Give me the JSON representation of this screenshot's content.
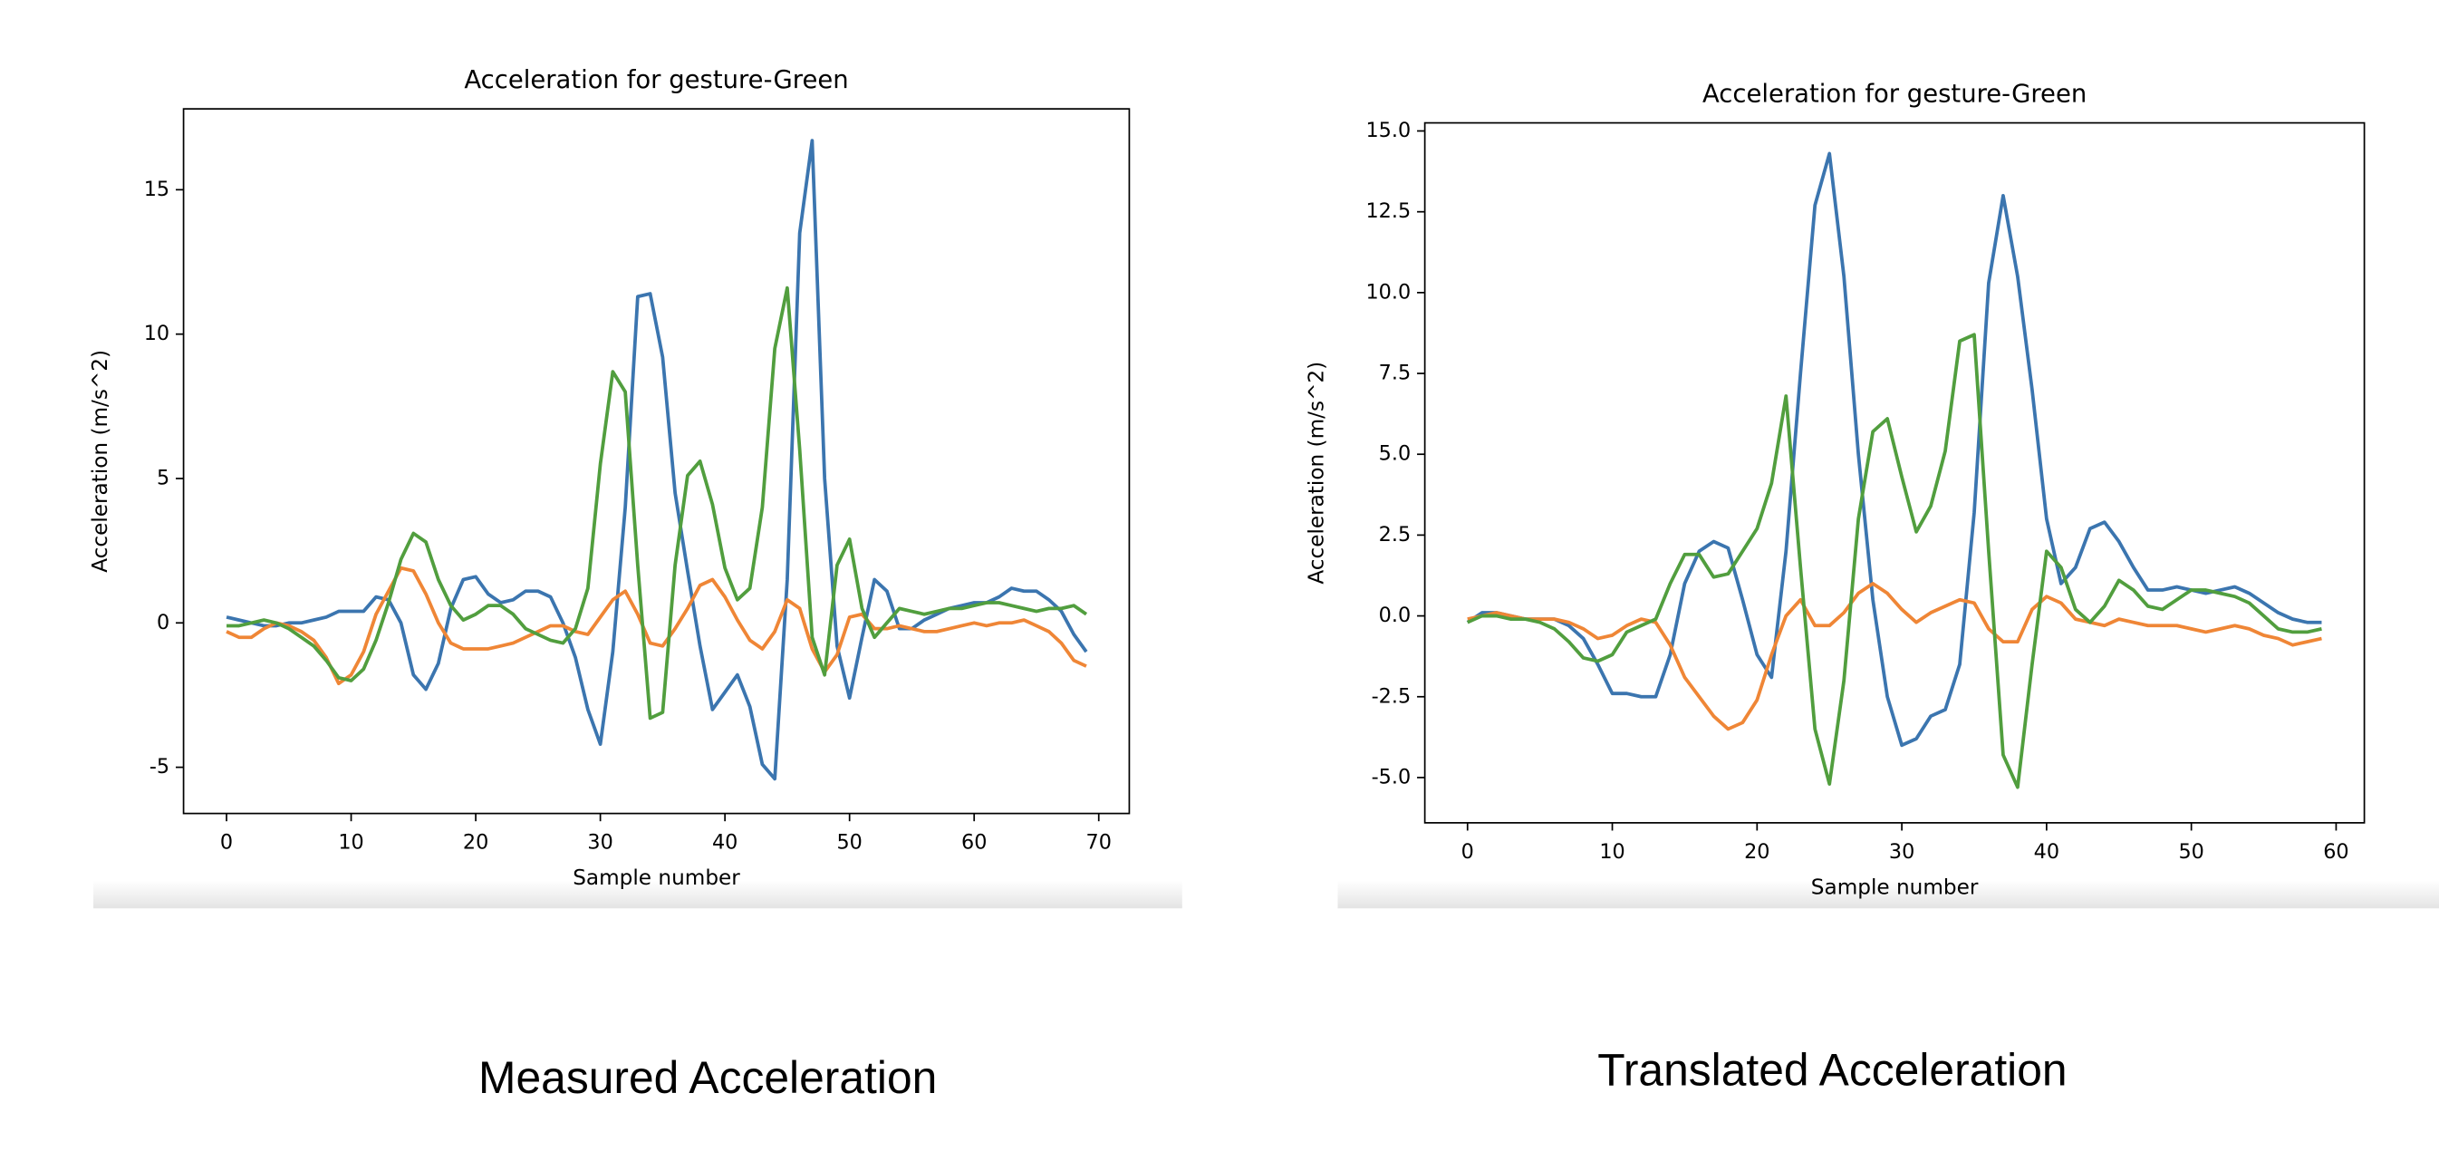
{
  "chart_data": [
    {
      "type": "line",
      "title": "Acceleration for gesture-Green",
      "x_label": "Sample number",
      "y_label": "Acceleration (m/s^2)",
      "x": [
        0,
        1,
        2,
        3,
        4,
        5,
        6,
        7,
        8,
        9,
        10,
        11,
        12,
        13,
        14,
        15,
        16,
        17,
        18,
        19,
        20,
        21,
        22,
        23,
        24,
        25,
        26,
        27,
        28,
        29,
        30,
        31,
        32,
        33,
        34,
        35,
        36,
        37,
        38,
        39,
        40,
        41,
        42,
        43,
        44,
        45,
        46,
        47,
        48,
        49,
        50,
        51,
        52,
        53,
        54,
        55,
        56,
        57,
        58,
        59,
        60,
        61,
        62,
        63,
        64,
        65,
        66,
        67,
        68,
        69
      ],
      "xlim": [
        -3.45,
        72.45
      ],
      "ylim": [
        -6.6,
        17.8
      ],
      "xticks": [
        0,
        10,
        20,
        30,
        40,
        50,
        60,
        70
      ],
      "yticks": [
        -5,
        0,
        5,
        10,
        15
      ],
      "series": [
        {
          "color": "#3b75af",
          "values": [
            0.2,
            0.1,
            0.0,
            -0.1,
            -0.1,
            0,
            0,
            0.1,
            0.2,
            0.4,
            0.4,
            0.4,
            0.9,
            0.8,
            0,
            -1.8,
            -2.3,
            -1.4,
            0.5,
            1.5,
            1.6,
            1.0,
            0.7,
            0.8,
            1.1,
            1.1,
            0.9,
            0,
            -1.2,
            -3.0,
            -4.2,
            -1.0,
            4.0,
            11.3,
            11.4,
            9.2,
            4.5,
            1.8,
            -0.8,
            -3.0,
            -2.4,
            -1.8,
            -2.9,
            -4.9,
            -5.4,
            1.5,
            13.5,
            16.7,
            5.0,
            -0.8,
            -2.6,
            -0.5,
            1.5,
            1.1,
            -0.2,
            -0.2,
            0.1,
            0.3,
            0.5,
            0.6,
            0.7,
            0.7,
            0.9,
            1.2,
            1.1,
            1.1,
            0.8,
            0.4,
            -0.4,
            -1.0
          ]
        },
        {
          "color": "#ef8636",
          "values": [
            -0.3,
            -0.5,
            -0.5,
            -0.2,
            0.0,
            -0.1,
            -0.3,
            -0.6,
            -1.2,
            -2.1,
            -1.8,
            -1.0,
            0.3,
            1.1,
            1.9,
            1.8,
            1.0,
            0.0,
            -0.7,
            -0.9,
            -0.9,
            -0.9,
            -0.8,
            -0.7,
            -0.5,
            -0.3,
            -0.1,
            -0.1,
            -0.3,
            -0.4,
            0.2,
            0.8,
            1.1,
            0.3,
            -0.7,
            -0.8,
            -0.2,
            0.5,
            1.3,
            1.5,
            0.9,
            0.1,
            -0.6,
            -0.9,
            -0.3,
            0.8,
            0.5,
            -0.9,
            -1.7,
            -1.1,
            0.2,
            0.3,
            -0.2,
            -0.2,
            -0.1,
            -0.2,
            -0.3,
            -0.3,
            -0.2,
            -0.1,
            0.0,
            -0.1,
            0.0,
            0.0,
            0.1,
            -0.1,
            -0.3,
            -0.7,
            -1.3,
            -1.5
          ]
        },
        {
          "color": "#519e3e",
          "values": [
            -0.1,
            -0.1,
            0.0,
            0.1,
            0.0,
            -0.2,
            -0.5,
            -0.8,
            -1.3,
            -1.9,
            -2.0,
            -1.6,
            -0.6,
            0.7,
            2.2,
            3.1,
            2.8,
            1.5,
            0.6,
            0.1,
            0.3,
            0.6,
            0.6,
            0.3,
            -0.2,
            -0.4,
            -0.6,
            -0.7,
            -0.2,
            1.2,
            5.5,
            8.7,
            8.0,
            2.0,
            -3.3,
            -3.1,
            2.0,
            5.1,
            5.6,
            4.1,
            1.9,
            0.8,
            1.2,
            4.0,
            9.5,
            11.6,
            6.0,
            -0.5,
            -1.8,
            2.0,
            2.9,
            0.5,
            -0.5,
            0.0,
            0.5,
            0.4,
            0.3,
            0.4,
            0.5,
            0.5,
            0.6,
            0.7,
            0.7,
            0.6,
            0.5,
            0.4,
            0.5,
            0.5,
            0.6,
            0.3
          ]
        }
      ]
    },
    {
      "type": "line",
      "title": "Acceleration for gesture-Green",
      "x_label": "Sample number",
      "y_label": "Acceleration (m/s^2)",
      "x": [
        0,
        1,
        2,
        3,
        4,
        5,
        6,
        7,
        8,
        9,
        10,
        11,
        12,
        13,
        14,
        15,
        16,
        17,
        18,
        19,
        20,
        21,
        22,
        23,
        24,
        25,
        26,
        27,
        28,
        29,
        30,
        31,
        32,
        33,
        34,
        35,
        36,
        37,
        38,
        39,
        40,
        41,
        42,
        43,
        44,
        45,
        46,
        47,
        48,
        49,
        50,
        51,
        52,
        53,
        54,
        55,
        56,
        57,
        58,
        59
      ],
      "xlim": [
        -2.95,
        61.95
      ],
      "ylim": [
        -6.4,
        15.25
      ],
      "xticks": [
        0,
        10,
        20,
        30,
        40,
        50,
        60
      ],
      "yticks": [
        {
          "value": -5,
          "label": "-5.0"
        },
        -2.5,
        {
          "value": 0,
          "label": "0.0"
        },
        2.5,
        {
          "value": 5,
          "label": "5.0"
        },
        7.5,
        {
          "value": 10,
          "label": "10.0"
        },
        12.5,
        {
          "value": 15,
          "label": "15.0"
        }
      ],
      "series": [
        {
          "color": "#3b75af",
          "values": [
            -0.2,
            0.1,
            0.1,
            0.0,
            -0.1,
            -0.1,
            -0.1,
            -0.3,
            -0.7,
            -1.5,
            -2.4,
            -2.4,
            -2.5,
            -2.5,
            -1.2,
            1.0,
            2.0,
            2.3,
            2.1,
            0.5,
            -1.2,
            -1.9,
            2.0,
            7.5,
            12.7,
            14.3,
            10.5,
            5.0,
            0.5,
            -2.5,
            -4.0,
            -3.8,
            -3.1,
            -2.9,
            -1.5,
            3.2,
            10.3,
            13.0,
            10.5,
            7.0,
            3.0,
            1.0,
            1.5,
            2.7,
            2.9,
            2.3,
            1.5,
            0.8,
            0.8,
            0.9,
            0.8,
            0.7,
            0.8,
            0.9,
            0.7,
            0.4,
            0.1,
            -0.1,
            -0.2,
            -0.2
          ]
        },
        {
          "color": "#ef8636",
          "values": [
            -0.1,
            0.0,
            0.1,
            0.0,
            -0.1,
            -0.1,
            -0.1,
            -0.2,
            -0.4,
            -0.7,
            -0.6,
            -0.3,
            -0.1,
            -0.2,
            -0.9,
            -1.9,
            -2.5,
            -3.1,
            -3.5,
            -3.3,
            -2.6,
            -1.2,
            0.0,
            0.5,
            -0.3,
            -0.3,
            0.1,
            0.7,
            1.0,
            0.7,
            0.2,
            -0.2,
            0.1,
            0.3,
            0.5,
            0.4,
            -0.4,
            -0.8,
            -0.8,
            0.2,
            0.6,
            0.4,
            -0.1,
            -0.2,
            -0.3,
            -0.1,
            -0.2,
            -0.3,
            -0.3,
            -0.3,
            -0.4,
            -0.5,
            -0.4,
            -0.3,
            -0.4,
            -0.6,
            -0.7,
            -0.9,
            -0.8,
            -0.7
          ]
        },
        {
          "color": "#519e3e",
          "values": [
            -0.2,
            0.0,
            0.0,
            -0.1,
            -0.1,
            -0.2,
            -0.4,
            -0.8,
            -1.3,
            -1.4,
            -1.2,
            -0.5,
            -0.3,
            -0.1,
            1.0,
            1.9,
            1.9,
            1.2,
            1.3,
            2.0,
            2.7,
            4.1,
            6.8,
            1.5,
            -3.5,
            -5.2,
            -2.0,
            3.0,
            5.7,
            6.1,
            4.3,
            2.6,
            3.4,
            5.1,
            8.5,
            8.7,
            2.0,
            -4.3,
            -5.3,
            -1.5,
            2.0,
            1.5,
            0.2,
            -0.2,
            0.3,
            1.1,
            0.8,
            0.3,
            0.2,
            0.5,
            0.8,
            0.8,
            0.7,
            0.6,
            0.4,
            0.0,
            -0.4,
            -0.5,
            -0.5,
            -0.4
          ]
        }
      ]
    }
  ],
  "captions": [
    "Measured Acceleration",
    "Translated Acceleration"
  ]
}
